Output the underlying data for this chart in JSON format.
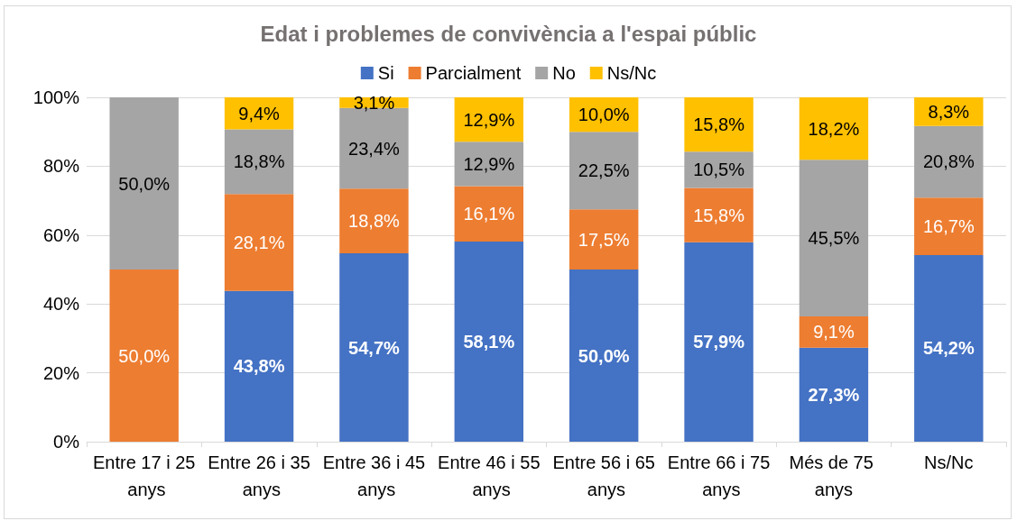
{
  "chart_data": {
    "type": "bar",
    "stacked": true,
    "title": "Edat i problemes de convivència a l'espai públic",
    "categories": [
      "Entre 17 i 25 anys",
      "Entre 26 i 35 anys",
      "Entre 36 i 45 anys",
      "Entre 46 i 55 anys",
      "Entre 56 i 65 anys",
      "Entre 66 i 75 anys",
      "Més de 75 anys",
      "Ns/Nc"
    ],
    "series": [
      {
        "name": "Si",
        "color": "#4472c4",
        "values": [
          null,
          43.8,
          54.7,
          58.1,
          50.0,
          57.9,
          27.3,
          54.2
        ],
        "value_labels": [
          null,
          "43,8%",
          "54,7%",
          "58,1%",
          "50,0%",
          "57,9%",
          "27,3%",
          "54,2%"
        ]
      },
      {
        "name": "Parcialment",
        "color": "#ed7d31",
        "values": [
          50.0,
          28.1,
          18.8,
          16.1,
          17.5,
          15.8,
          9.1,
          16.7
        ],
        "value_labels": [
          "50,0%",
          "28,1%",
          "18,8%",
          "16,1%",
          "17,5%",
          "15,8%",
          "9,1%",
          "16,7%"
        ]
      },
      {
        "name": "No",
        "color": "#a5a5a5",
        "values": [
          50.0,
          18.8,
          23.4,
          12.9,
          22.5,
          10.5,
          45.5,
          20.8
        ],
        "value_labels": [
          "50,0%",
          "18,8%",
          "23,4%",
          "12,9%",
          "22,5%",
          "10,5%",
          "45,5%",
          "20,8%"
        ]
      },
      {
        "name": "Ns/Nc",
        "color": "#ffc000",
        "values": [
          null,
          9.4,
          3.1,
          12.9,
          10.0,
          15.8,
          18.2,
          8.3
        ],
        "value_labels": [
          null,
          "9,4%",
          "3,1%",
          "12,9%",
          "10,0%",
          "15,8%",
          "18,2%",
          "8,3%"
        ]
      }
    ],
    "ylim": [
      0,
      100
    ],
    "yticks": [
      {
        "value": 0,
        "label": "0%"
      },
      {
        "value": 20,
        "label": "20%"
      },
      {
        "value": 40,
        "label": "40%"
      },
      {
        "value": 60,
        "label": "60%"
      },
      {
        "value": 80,
        "label": "80%"
      },
      {
        "value": 100,
        "label": "100%"
      }
    ],
    "grid": "y",
    "legend": "top"
  }
}
